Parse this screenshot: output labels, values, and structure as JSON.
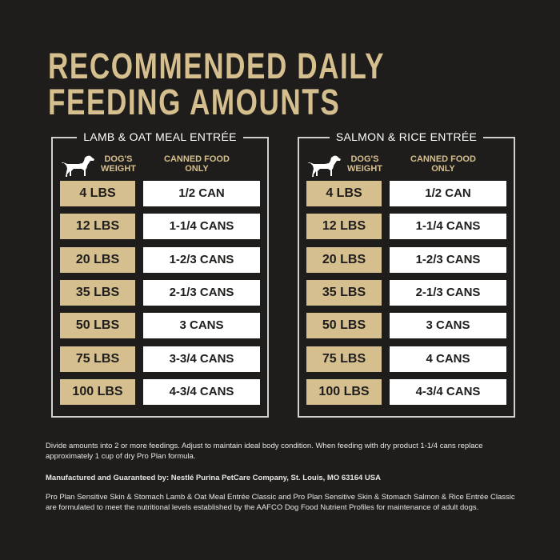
{
  "title": {
    "line1": "RECOMMENDED DAILY",
    "line2": "FEEDING AMOUNTS"
  },
  "column_headers": {
    "weight": "DOG'S WEIGHT",
    "amount": "CANNED FOOD ONLY"
  },
  "panels": [
    {
      "name": "LAMB  & OAT MEAL ENTRÉE",
      "rows": [
        {
          "weight": "4 LBS",
          "amount": "1/2 CAN"
        },
        {
          "weight": "12 LBS",
          "amount": "1-1/4 CANS"
        },
        {
          "weight": "20 LBS",
          "amount": "1-2/3 CANS"
        },
        {
          "weight": "35 LBS",
          "amount": "2-1/3 CANS"
        },
        {
          "weight": "50 LBS",
          "amount": "3 CANS"
        },
        {
          "weight": "75 LBS",
          "amount": "3-3/4 CANS"
        },
        {
          "weight": "100 LBS",
          "amount": "4-3/4 CANS"
        }
      ]
    },
    {
      "name": "SALMON & RICE ENTRÉE",
      "rows": [
        {
          "weight": "4 LBS",
          "amount": "1/2 CAN"
        },
        {
          "weight": "12 LBS",
          "amount": "1-1/4 CANS"
        },
        {
          "weight": "20 LBS",
          "amount": "1-2/3 CANS"
        },
        {
          "weight": "35 LBS",
          "amount": "2-1/3 CANS"
        },
        {
          "weight": "50 LBS",
          "amount": "3 CANS"
        },
        {
          "weight": "75 LBS",
          "amount": "4 CANS"
        },
        {
          "weight": "100 LBS",
          "amount": "4-3/4 CANS"
        }
      ]
    }
  ],
  "footer": {
    "note": "Divide amounts into 2 or more feedings. Adjust to maintain ideal body condition. When feeding with dry product 1-1/4 cans replace approximately 1 cup of dry Pro Plan formula.",
    "manufacturer": "Manufactured and Guaranteed by: Nestlé Purina PetCare Company, St. Louis, MO 63164 USA",
    "aafco": "Pro Plan Sensitive Skin & Stomach Lamb & Oat Meal Entrée Classic and Pro Plan Sensitive Skin & Stomach Salmon & Rice Entrée Classic are formulated to meet the nutritional levels established by the AAFCO Dog Food Nutrient Profiles for maintenance of adult dogs."
  },
  "colors": {
    "background": "#1e1d1b",
    "gold": "#d6bf8f",
    "white": "#ffffff"
  },
  "icons": {
    "dog": "dog-silhouette-icon"
  }
}
